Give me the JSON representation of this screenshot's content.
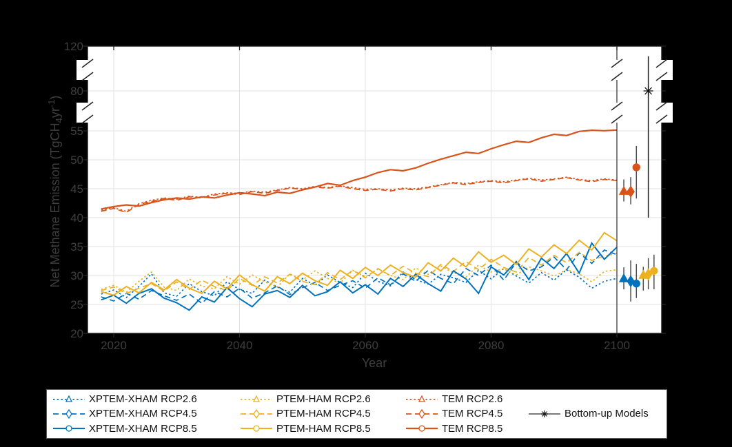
{
  "figure": {
    "background": "#000000",
    "plot_background": "#ffffff",
    "text_color": "#3e3e3e",
    "grid_color": "#e2e2e2",
    "axis_color": "#1a1a1a",
    "tick_color": "#262626",
    "errorbar_stem_color": "#4d4d4d",
    "separator_color": "#3a3a3a"
  },
  "axes": {
    "x": {
      "label": "Year",
      "ticks": [
        2020,
        2040,
        2060,
        2080,
        2100
      ]
    },
    "y": {
      "label_main": "Net Methane Emission (TgCH",
      "label_sub": "4",
      "label_mid": "yr",
      "label_sup": "-1",
      "label_end": ")",
      "ticks": [
        20,
        25,
        30,
        35,
        40,
        45,
        50,
        55,
        80,
        120
      ],
      "segments": [
        [
          20,
          55
        ],
        [
          55,
          80
        ],
        [
          80,
          120
        ]
      ],
      "breaks": [
        [
          55,
          80
        ],
        [
          80,
          120
        ]
      ]
    }
  },
  "chart_data": {
    "type": "line",
    "title": "",
    "xlabel": "Year",
    "ylabel": "Net Methane Emission (TgCH4 yr-1)",
    "xlim": [
      2016,
      2107
    ],
    "ylim_segments": [
      [
        20,
        55
      ],
      [
        55,
        80
      ],
      [
        80,
        120
      ]
    ],
    "grid": "on",
    "legend_position": "below",
    "x_years": [
      2018,
      2020,
      2022,
      2024,
      2026,
      2028,
      2030,
      2032,
      2034,
      2036,
      2038,
      2040,
      2042,
      2044,
      2046,
      2048,
      2050,
      2052,
      2054,
      2056,
      2058,
      2060,
      2062,
      2064,
      2066,
      2068,
      2070,
      2072,
      2074,
      2076,
      2078,
      2080,
      2082,
      2084,
      2086,
      2088,
      2090,
      2092,
      2094,
      2096,
      2098,
      2100
    ],
    "series": [
      {
        "name": "tem_rcp26",
        "label": "TEM RCP2.6",
        "color": "#D95319",
        "dash": "dotted",
        "marker": "triangle",
        "width": 1.7,
        "values": [
          41.3,
          41.7,
          41.1,
          42.4,
          43.0,
          43.4,
          43.2,
          43.7,
          43.5,
          44.1,
          44.3,
          44.2,
          44.6,
          44.4,
          44.8,
          45.2,
          45.0,
          45.4,
          45.2,
          45.5,
          45.2,
          44.9,
          45.0,
          44.8,
          45.1,
          45.0,
          45.3,
          45.7,
          46.1,
          45.9,
          46.2,
          46.4,
          46.2,
          46.5,
          46.8,
          46.5,
          46.7,
          47.0,
          46.6,
          46.4,
          46.7,
          46.5
        ]
      },
      {
        "name": "tem_rcp45",
        "label": "TEM RCP4.5",
        "color": "#D95319",
        "dash": "dashed",
        "marker": "diamond",
        "width": 1.7,
        "values": [
          41.1,
          41.6,
          40.9,
          42.3,
          42.8,
          43.3,
          43.0,
          43.6,
          43.4,
          43.9,
          44.2,
          44.0,
          44.5,
          44.2,
          44.7,
          45.1,
          44.9,
          45.3,
          45.1,
          45.4,
          45.0,
          44.7,
          44.9,
          44.6,
          45.0,
          44.8,
          45.2,
          45.6,
          46.0,
          45.7,
          46.1,
          46.3,
          46.0,
          46.4,
          46.7,
          46.3,
          46.6,
          46.9,
          46.5,
          46.2,
          46.6,
          46.4
        ]
      },
      {
        "name": "xptem_rcp26",
        "label": "XPTEM-XHAM RCP2.6",
        "color": "#0072BD",
        "dash": "dotted",
        "marker": "triangle",
        "width": 1.7,
        "values": [
          26.8,
          27.5,
          26.2,
          28.1,
          30.3,
          27.0,
          26.4,
          28.6,
          27.2,
          26.5,
          28.9,
          27.6,
          26.9,
          29.2,
          28.0,
          27.1,
          29.5,
          28.3,
          30.1,
          28.8,
          27.9,
          30.4,
          29.0,
          28.2,
          30.6,
          29.3,
          28.5,
          30.2,
          29.6,
          28.8,
          30.9,
          29.4,
          31.2,
          29.9,
          28.7,
          30.5,
          29.2,
          31.0,
          29.7,
          27.8,
          29.0,
          29.5
        ]
      },
      {
        "name": "ptem_rcp26",
        "label": "PTEM-HAM RCP2.6",
        "color": "#EDB120",
        "dash": "dotted",
        "marker": "triangle",
        "width": 1.7,
        "values": [
          27.6,
          28.3,
          27.1,
          29.0,
          30.6,
          28.0,
          27.4,
          29.4,
          28.2,
          27.7,
          29.8,
          28.5,
          30.1,
          28.9,
          28.0,
          30.3,
          29.2,
          30.8,
          29.5,
          28.7,
          30.9,
          29.8,
          31.1,
          30.0,
          29.3,
          31.3,
          30.2,
          31.6,
          30.5,
          29.7,
          31.8,
          30.6,
          31.2,
          30.1,
          31.5,
          30.8,
          29.9,
          31.0,
          30.3,
          28.9,
          30.7,
          31.0
        ]
      },
      {
        "name": "xptem_rcp45",
        "label": "XPTEM-XHAM RCP4.5",
        "color": "#0072BD",
        "dash": "dashed",
        "marker": "diamond",
        "width": 1.7,
        "values": [
          26.3,
          25.6,
          26.9,
          25.9,
          27.4,
          26.5,
          25.7,
          26.8,
          25.2,
          27.2,
          26.3,
          27.8,
          26.1,
          27.0,
          28.2,
          26.7,
          27.9,
          28.8,
          27.4,
          28.3,
          29.1,
          27.8,
          29.6,
          28.4,
          30.3,
          29.0,
          30.9,
          29.5,
          28.6,
          31.2,
          30.0,
          31.8,
          29.2,
          32.3,
          30.8,
          31.5,
          33.2,
          31.0,
          33.9,
          32.1,
          34.4,
          33.6
        ]
      },
      {
        "name": "ptem_rcp45",
        "label": "PTEM-HAM RCP4.5",
        "color": "#EDB120",
        "dash": "dashed",
        "marker": "diamond",
        "width": 1.7,
        "values": [
          27.4,
          28.0,
          26.9,
          27.8,
          28.6,
          27.3,
          28.9,
          27.6,
          29.2,
          28.1,
          27.4,
          29.5,
          28.3,
          29.8,
          28.7,
          30.2,
          29.0,
          28.4,
          30.5,
          29.3,
          30.9,
          29.6,
          31.2,
          30.0,
          31.6,
          30.4,
          29.8,
          31.9,
          30.7,
          32.4,
          31.0,
          32.8,
          31.4,
          30.6,
          33.1,
          31.8,
          33.5,
          32.2,
          34.0,
          32.6,
          33.4,
          33.8
        ]
      },
      {
        "name": "xptem_rcp85",
        "label": "XPTEM-XHAM RCP8.5",
        "color": "#0072BD",
        "dash": "solid",
        "marker": "circle",
        "width": 2.0,
        "values": [
          25.8,
          26.6,
          25.2,
          26.9,
          27.7,
          26.1,
          25.3,
          24.0,
          26.3,
          25.4,
          27.9,
          26.0,
          24.6,
          26.8,
          27.4,
          26.2,
          28.3,
          26.5,
          27.2,
          28.9,
          27.0,
          28.4,
          26.8,
          29.5,
          28.1,
          30.2,
          28.6,
          27.3,
          30.8,
          29.4,
          26.9,
          31.5,
          30.1,
          32.4,
          29.3,
          33.0,
          31.2,
          33.8,
          30.4,
          35.6,
          32.8,
          34.9
        ]
      },
      {
        "name": "ptem_rcp85",
        "label": "PTEM-HAM RCP8.5",
        "color": "#EDB120",
        "dash": "solid",
        "marker": "circle",
        "width": 2.0,
        "values": [
          27.2,
          26.6,
          28.1,
          27.0,
          28.8,
          27.5,
          29.3,
          27.8,
          26.9,
          29.0,
          27.7,
          30.1,
          28.4,
          27.3,
          29.8,
          28.6,
          30.4,
          29.1,
          28.3,
          30.9,
          29.5,
          31.4,
          30.0,
          31.8,
          30.5,
          29.7,
          32.2,
          30.8,
          33.0,
          31.5,
          34.1,
          32.3,
          33.5,
          31.9,
          34.6,
          33.2,
          35.3,
          33.8,
          36.1,
          34.4,
          37.4,
          36.0
        ]
      },
      {
        "name": "tem_rcp85",
        "label": "TEM RCP8.5",
        "color": "#D95319",
        "dash": "solid",
        "marker": "circle",
        "width": 2.2,
        "values": [
          41.5,
          41.9,
          42.2,
          42.0,
          42.6,
          43.1,
          43.4,
          43.2,
          43.6,
          43.4,
          43.9,
          44.3,
          44.1,
          43.8,
          44.4,
          44.2,
          44.8,
          45.3,
          45.9,
          45.6,
          46.4,
          47.0,
          47.8,
          48.3,
          48.1,
          48.6,
          49.4,
          50.1,
          50.7,
          51.3,
          51.1,
          51.9,
          52.6,
          53.2,
          53.0,
          53.8,
          54.4,
          54.2,
          54.9,
          55.4,
          55.1,
          55.5
        ]
      },
      {
        "name": "bottom_up",
        "label": "Bottom-up Models",
        "color": "#4d4d4d",
        "dash": "solid",
        "marker": "asterisk",
        "width": 1.4,
        "values": []
      }
    ],
    "error_bars": [
      {
        "series": "tem_rcp26",
        "x": 2101.1,
        "y": 44.5,
        "lo": 42.8,
        "hi": 46.6,
        "marker": "triangle"
      },
      {
        "series": "tem_rcp45",
        "x": 2102.2,
        "y": 44.5,
        "lo": 42.3,
        "hi": 47.0,
        "marker": "diamond"
      },
      {
        "series": "tem_rcp85",
        "x": 2103.1,
        "y": 48.7,
        "lo": 43.3,
        "hi": 52.4,
        "marker": "circle"
      },
      {
        "series": "xptem_rcp26",
        "x": 2101.1,
        "y": 29.4,
        "lo": 27.6,
        "hi": 31.4,
        "marker": "triangle"
      },
      {
        "series": "xptem_rcp45",
        "x": 2102.2,
        "y": 29.0,
        "lo": 25.5,
        "hi": 32.6,
        "marker": "diamond"
      },
      {
        "series": "xptem_rcp85",
        "x": 2103.1,
        "y": 28.6,
        "lo": 26.1,
        "hi": 32.0,
        "marker": "circle"
      },
      {
        "series": "ptem_rcp26",
        "x": 2104.2,
        "y": 30.0,
        "lo": 27.4,
        "hi": 31.5,
        "marker": "triangle"
      },
      {
        "series": "ptem_rcp45",
        "x": 2105.0,
        "y": 30.2,
        "lo": 27.6,
        "hi": 33.0,
        "marker": "diamond"
      },
      {
        "series": "ptem_rcp85",
        "x": 2105.9,
        "y": 30.8,
        "lo": 27.6,
        "hi": 33.6,
        "marker": "circle"
      },
      {
        "series": "bottom_up",
        "x": 2105.0,
        "y": 80.0,
        "lo": 40.0,
        "hi": 111.0,
        "marker": "asterisk"
      }
    ]
  },
  "legend": {
    "entries": [
      {
        "label": "XPTEM-XHAM RCP2.6",
        "series": "xptem_rcp26",
        "col": 1,
        "row": 1
      },
      {
        "label": "XPTEM-XHAM RCP4.5",
        "series": "xptem_rcp45",
        "col": 1,
        "row": 2
      },
      {
        "label": "XPTEM-XHAM RCP8.5",
        "series": "xptem_rcp85",
        "col": 1,
        "row": 3
      },
      {
        "label": "PTEM-HAM RCP2.6",
        "series": "ptem_rcp26",
        "col": 2,
        "row": 1
      },
      {
        "label": "PTEM-HAM RCP4.5",
        "series": "ptem_rcp45",
        "col": 2,
        "row": 2
      },
      {
        "label": "PTEM-HAM RCP8.5",
        "series": "ptem_rcp85",
        "col": 2,
        "row": 3
      },
      {
        "label": "TEM RCP2.6",
        "series": "tem_rcp26",
        "col": 3,
        "row": 1
      },
      {
        "label": "TEM RCP4.5",
        "series": "tem_rcp45",
        "col": 3,
        "row": 2
      },
      {
        "label": "TEM RCP8.5",
        "series": "tem_rcp85",
        "col": 3,
        "row": 3
      },
      {
        "label": "Bottom-up Models",
        "series": "bottom_up",
        "col": 4,
        "row": 2
      }
    ]
  }
}
